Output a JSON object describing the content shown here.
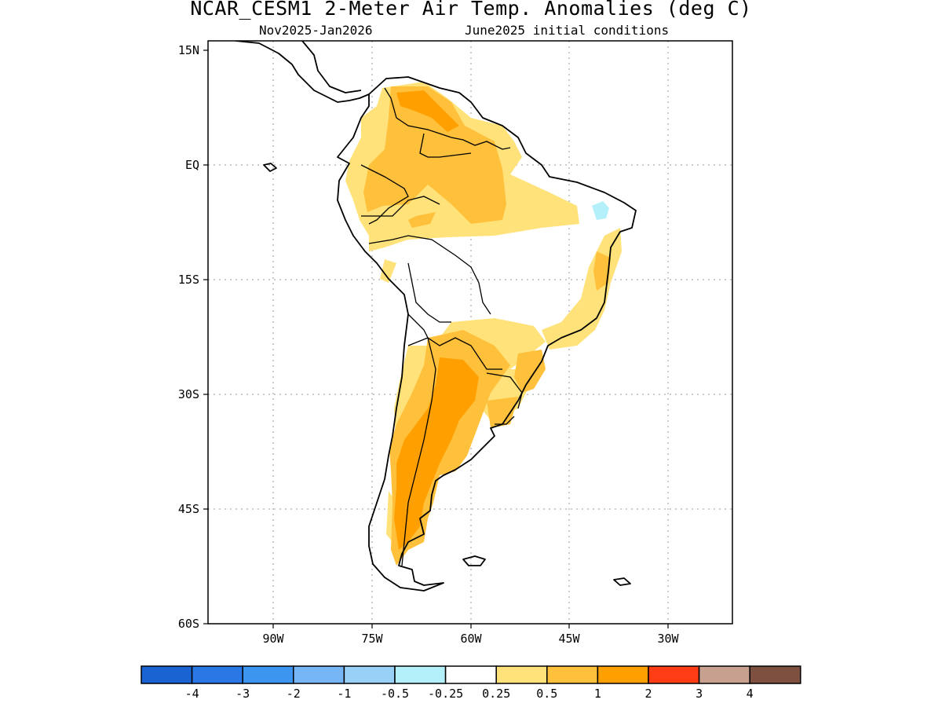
{
  "header": {
    "title": "NCAR_CESM1 2-Meter Air Temp. Anomalies (deg C)",
    "period": "Nov2025-Jan2026",
    "init": "June2025 initial conditions"
  },
  "axes": {
    "lat_labels": [
      "15N",
      "EQ",
      "15S",
      "30S",
      "45S",
      "60S"
    ],
    "lon_labels": [
      "90W",
      "75W",
      "60W",
      "45W",
      "30W"
    ]
  },
  "colorbar": {
    "colors": [
      "#1964d2",
      "#2a78e6",
      "#3c96f0",
      "#76b6f6",
      "#98d0f8",
      "#b4f0fa",
      "#ffffff",
      "#ffe27a",
      "#ffc03c",
      "#ffa000",
      "#ff3c14",
      "#c8a090",
      "#7d5040"
    ],
    "labels": [
      "-4",
      "-3",
      "-2",
      "-1",
      "-0.5",
      "-0.25",
      "0.25",
      "0.5",
      "1",
      "2",
      "3",
      "4"
    ]
  },
  "legend_colors": {
    "land_outline": "#000000",
    "grid": "#999999",
    "light_yellow": "#ffe27a",
    "orange_light": "#ffc03c",
    "orange": "#ffa000",
    "cyan": "#b4f0fa"
  }
}
